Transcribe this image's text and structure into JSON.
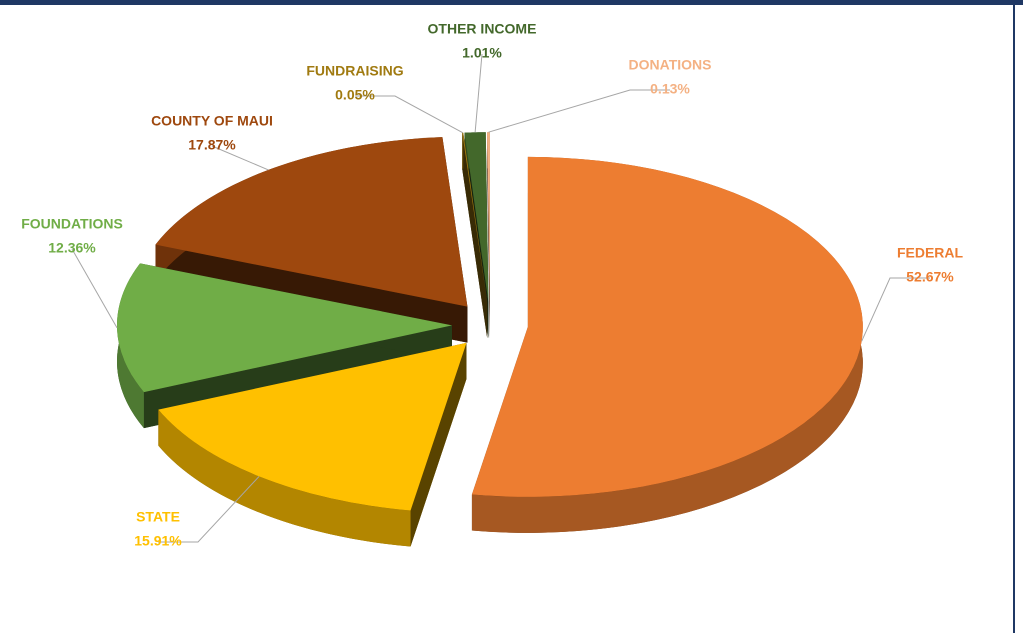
{
  "chart_data": {
    "type": "pie",
    "categories": [
      "FEDERAL",
      "STATE",
      "FOUNDATIONS",
      "COUNTY OF MAUI",
      "FUNDRAISING",
      "OTHER INCOME",
      "DONATIONS"
    ],
    "values": [
      52.67,
      15.91,
      12.36,
      17.87,
      0.05,
      1.01,
      0.13
    ],
    "value_labels": [
      "52.67%",
      "15.91%",
      "12.36%",
      "17.87%",
      "0.05%",
      "1.01%",
      "0.13%"
    ],
    "colors": [
      "#ed7d31",
      "#ffc000",
      "#70ad47",
      "#9e480e",
      "#a07a10",
      "#43682b",
      "#f4b183"
    ]
  }
}
